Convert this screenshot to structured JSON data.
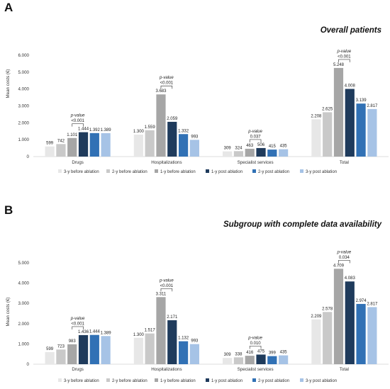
{
  "legend": [
    "3-y before ablation",
    "2-y before ablation",
    "1-y before ablation",
    "1-y post ablation",
    "2-y post ablation",
    "3-y post ablation"
  ],
  "colors": [
    "#e7e7e7",
    "#c9c9c9",
    "#a6a6a6",
    "#1f3b5c",
    "#3171b5",
    "#a6c3e6"
  ],
  "chart_data": [
    {
      "type": "bar",
      "panel": "A",
      "title": "Overall patients",
      "ylabel": "Mean costs (€)",
      "ylim": [
        0,
        6000
      ],
      "yticks": [
        "0",
        "1.000",
        "2.000",
        "3.000",
        "4.000",
        "5.000",
        "6.000"
      ],
      "categories": [
        "Drugs",
        "Hospitalizations",
        "Specialist services",
        "Total"
      ],
      "series": [
        {
          "name": "3-y before ablation",
          "values": [
            599,
            1300,
            309,
            2208
          ],
          "labels": [
            "599",
            "1.300",
            "309",
            "2.208"
          ]
        },
        {
          "name": "2-y before ablation",
          "values": [
            742,
            1559,
            324,
            2625
          ],
          "labels": [
            "742",
            "1.559",
            "324",
            "2.625"
          ]
        },
        {
          "name": "1-y before ablation",
          "values": [
            1101,
            3683,
            463,
            5248
          ],
          "labels": [
            "1.101",
            "3.683",
            "463",
            "5.248"
          ]
        },
        {
          "name": "1-y post ablation",
          "values": [
            1444,
            2059,
            506,
            4008
          ],
          "labels": [
            "1.444",
            "2.059",
            "506",
            "4.008"
          ]
        },
        {
          "name": "2-y post ablation",
          "values": [
            1392,
            1332,
            415,
            3139
          ],
          "labels": [
            "1.392",
            "1.332",
            "415",
            "3.139"
          ]
        },
        {
          "name": "3-y post ablation",
          "values": [
            1389,
            993,
            435,
            2817
          ],
          "labels": [
            "1.389",
            "993",
            "435",
            "2.817"
          ]
        }
      ],
      "annotations": [
        {
          "category": 0,
          "title": "p-value",
          "value": "<0.001"
        },
        {
          "category": 1,
          "title": "p-value",
          "value": "<0.001"
        },
        {
          "category": 2,
          "title": "p-value",
          "value": "0.037"
        },
        {
          "category": 3,
          "title": "p-value",
          "value": "<0.001"
        }
      ]
    },
    {
      "type": "bar",
      "panel": "B",
      "title": "Subgroup with complete data availability",
      "ylabel": "Mean costs (€)",
      "ylim": [
        0,
        5000
      ],
      "yticks": [
        "0",
        "1.000",
        "2.000",
        "3.000",
        "4.000",
        "5.000"
      ],
      "categories": [
        "Drugs",
        "Hospitalizations",
        "Specialist services",
        "Total"
      ],
      "series": [
        {
          "name": "3-y before ablation",
          "values": [
            599,
            1300,
            309,
            2209
          ],
          "labels": [
            "599",
            "1.300",
            "309",
            "2.209"
          ]
        },
        {
          "name": "2-y before ablation",
          "values": [
            723,
            1517,
            338,
            2578
          ],
          "labels": [
            "723",
            "1.517",
            "338",
            "2.578"
          ]
        },
        {
          "name": "1-y before ablation",
          "values": [
            983,
            3311,
            416,
            4709
          ],
          "labels": [
            "983",
            "3.311",
            "416",
            "4.709"
          ]
        },
        {
          "name": "1-y post ablation",
          "values": [
            1436,
            2171,
            475,
            4083
          ],
          "labels": [
            "1.436",
            "2.171",
            "475",
            "4.083"
          ]
        },
        {
          "name": "2-y post ablation",
          "values": [
            1444,
            1132,
            399,
            2974
          ],
          "labels": [
            "1.444",
            "1.132",
            "399",
            "2.974"
          ]
        },
        {
          "name": "3-y post ablation",
          "values": [
            1389,
            993,
            435,
            2817
          ],
          "labels": [
            "1.389",
            "993",
            "435",
            "2.817"
          ]
        }
      ],
      "annotations": [
        {
          "category": 0,
          "title": "p-value",
          "value": "<0.001"
        },
        {
          "category": 1,
          "title": "p-value",
          "value": "<0.001"
        },
        {
          "category": 2,
          "title": "p-value",
          "value": "0.010"
        },
        {
          "category": 3,
          "title": "p-value",
          "value": "0.034"
        }
      ]
    }
  ]
}
